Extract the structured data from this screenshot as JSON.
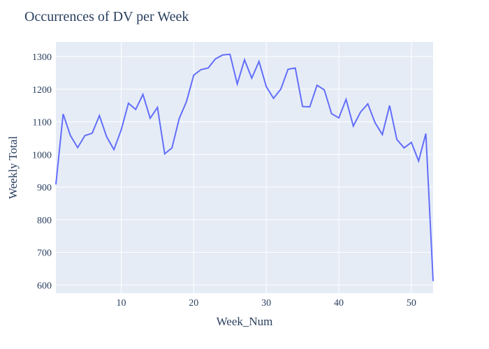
{
  "chart_data": {
    "type": "line",
    "title": "Occurrences of DV per Week",
    "xlabel": "Week_Num",
    "ylabel": "Weekly Total",
    "xlim": [
      1,
      53
    ],
    "ylim": [
      575,
      1345
    ],
    "x_ticks": [
      10,
      20,
      30,
      40,
      50
    ],
    "y_ticks": [
      600,
      700,
      800,
      900,
      1000,
      1100,
      1200,
      1300
    ],
    "grid": true,
    "colors": {
      "line": "#636efa",
      "plot_background": "#e5ecf6",
      "grid": "#ffffff",
      "text": "#2a3f5f"
    },
    "series": [
      {
        "x": [
          1,
          2,
          3,
          4,
          5,
          6,
          7,
          8,
          9,
          10,
          11,
          12,
          13,
          14,
          15,
          16,
          17,
          18,
          19,
          20,
          21,
          22,
          23,
          24,
          25,
          26,
          27,
          28,
          29,
          30,
          31,
          32,
          33,
          34,
          35,
          36,
          37,
          38,
          39,
          40,
          41,
          42,
          43,
          44,
          45,
          46,
          47,
          48,
          49,
          50,
          51,
          52,
          53
        ],
        "values": [
          908,
          1124,
          1058,
          1021,
          1058,
          1065,
          1119,
          1054,
          1015,
          1075,
          1157,
          1138,
          1184,
          1111,
          1144,
          1002,
          1020,
          1110,
          1162,
          1243,
          1260,
          1265,
          1293,
          1305,
          1307,
          1216,
          1290,
          1234,
          1285,
          1208,
          1172,
          1200,
          1261,
          1265,
          1147,
          1146,
          1212,
          1198,
          1125,
          1112,
          1169,
          1087,
          1130,
          1155,
          1097,
          1061,
          1150,
          1046,
          1020,
          1037,
          980,
          1064,
          612
        ]
      }
    ]
  }
}
